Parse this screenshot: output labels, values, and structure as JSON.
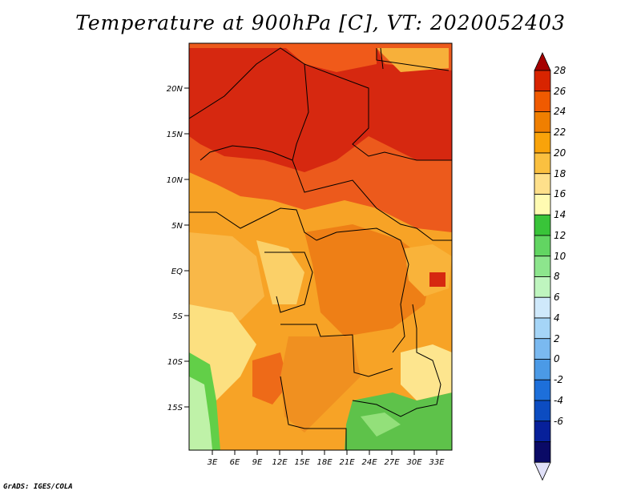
{
  "title": "Temperature at 900hPa [C], VT: 2020052403",
  "credit": "GrADS: IGES/COLA",
  "map": {
    "lat_labels": [
      "20N",
      "15N",
      "10N",
      "5N",
      "EQ",
      "5S",
      "10S",
      "15S"
    ],
    "lon_labels": [
      "3E",
      "6E",
      "9E",
      "12E",
      "15E",
      "18E",
      "21E",
      "24E",
      "27E",
      "30E",
      "33E"
    ]
  },
  "colorbar": {
    "labels": [
      "28",
      "26",
      "24",
      "22",
      "20",
      "18",
      "16",
      "14",
      "12",
      "10",
      "8",
      "6",
      "4",
      "2",
      "0",
      "-2",
      "-4",
      "-6"
    ],
    "colors": [
      "#a50000",
      "#d82400",
      "#f05a00",
      "#f07f00",
      "#f9a30a",
      "#fac040",
      "#fee08b",
      "#fffbb2",
      "#39c439",
      "#62d562",
      "#8de58d",
      "#bff5bf",
      "#cfe9fb",
      "#a5d5f7",
      "#7ab9f0",
      "#4b9ae6",
      "#1d6fda",
      "#0c4cc1",
      "#07209a",
      "#0a0a66",
      "#e0e0f8"
    ]
  }
}
